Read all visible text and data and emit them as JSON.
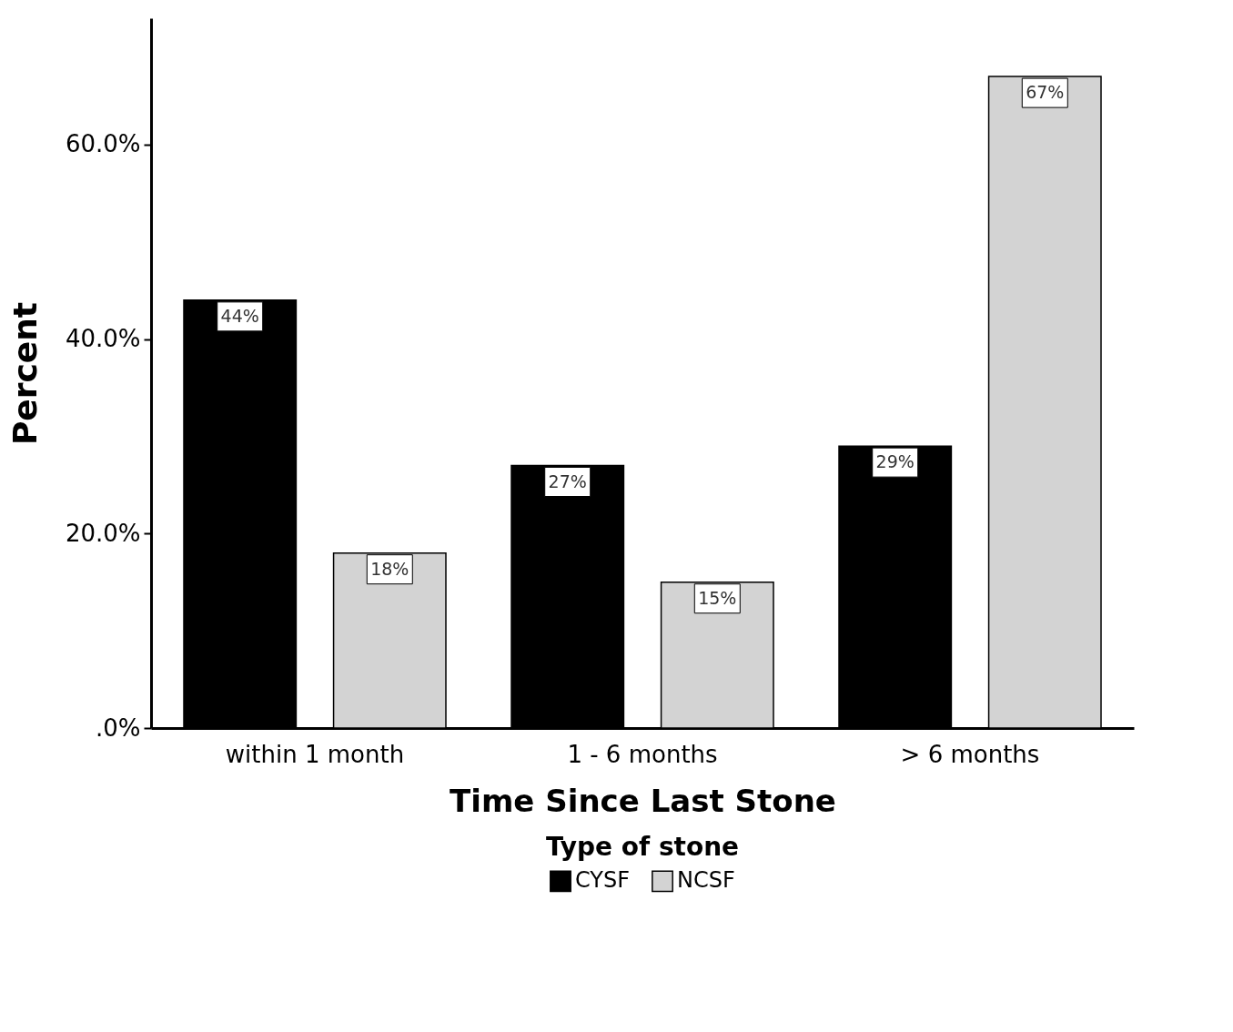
{
  "chart_data": {
    "type": "bar",
    "xlabel": "Time Since Last Stone",
    "ylabel": "Percent",
    "legend_title": "Type of stone",
    "categories": [
      "within 1 month",
      "1 - 6 months",
      "> 6 months"
    ],
    "series": [
      {
        "name": "CYSF",
        "color": "#000000",
        "values": [
          44,
          27,
          29
        ],
        "value_labels": [
          "44%",
          "27%",
          "29%"
        ]
      },
      {
        "name": "NCSF",
        "color": "#d3d3d3",
        "values": [
          18,
          15,
          67
        ],
        "value_labels": [
          "18%",
          "15%",
          "67%"
        ]
      }
    ],
    "ylim": [
      0,
      73
    ],
    "yticks": [
      {
        "value": 0,
        "label": ".0%"
      },
      {
        "value": 20,
        "label": "20.0%"
      },
      {
        "value": 40,
        "label": "40.0%"
      },
      {
        "value": 60,
        "label": "60.0%"
      }
    ],
    "grid": false,
    "legend": "bottom"
  }
}
